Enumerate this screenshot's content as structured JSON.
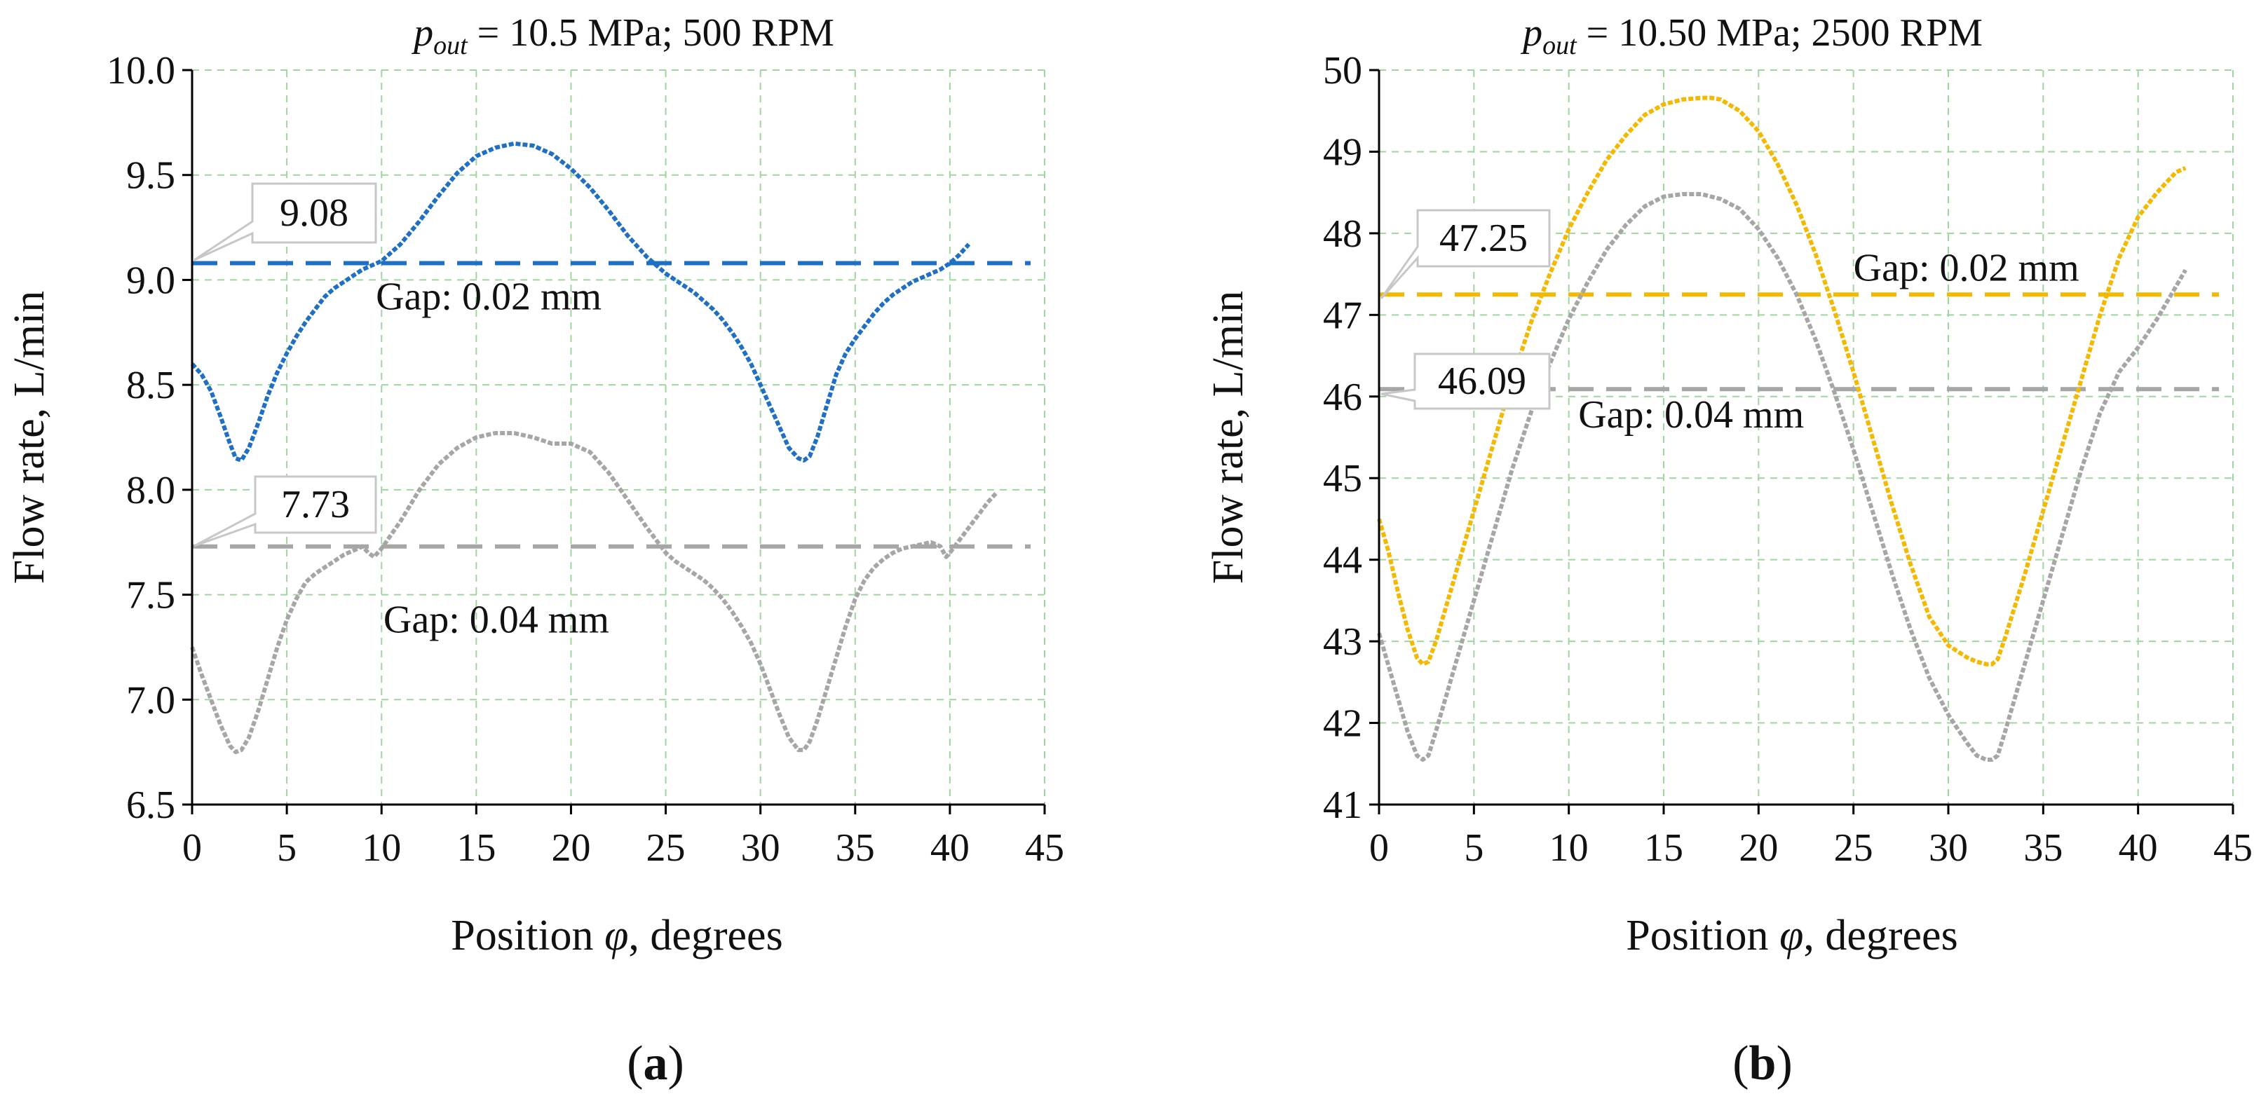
{
  "chart_data": [
    {
      "panel_label": "(a)",
      "type": "line",
      "title": {
        "symbol": "p",
        "subscript": "out",
        "rest": " = 10.5 MPa; 500 RPM"
      },
      "xlabel": {
        "before": "Position ",
        "symbol": "φ",
        "after": ", degrees"
      },
      "ylabel": "Flow rate, L/min",
      "xlim": [
        0,
        45
      ],
      "ylim": [
        6.5,
        10.0
      ],
      "x_ticks": [
        0,
        5,
        10,
        15,
        20,
        25,
        30,
        35,
        40,
        45
      ],
      "x_tick_labels": [
        "0",
        "5",
        "10",
        "15",
        "20",
        "25",
        "30",
        "35",
        "40",
        "45"
      ],
      "y_ticks": [
        6.5,
        7.0,
        7.5,
        8.0,
        8.5,
        9.0,
        9.5,
        10.0
      ],
      "y_tick_labels": [
        "6.5",
        "7.0",
        "7.5",
        "8.0",
        "8.5",
        "9.0",
        "9.5",
        "10.0"
      ],
      "grid": true,
      "series": [
        {
          "name": "Gap: 0.02 mm",
          "color": "#1f6fc5",
          "x": [
            0,
            0.5,
            1,
            1.5,
            2,
            2.3,
            2.6,
            3,
            3.5,
            4,
            4.5,
            5,
            5.5,
            6,
            6.5,
            7,
            7.5,
            8,
            8.5,
            9,
            9.5,
            10,
            11,
            12,
            13,
            14,
            15,
            16,
            17,
            18,
            19,
            20,
            21,
            22,
            23,
            24,
            25,
            25.5,
            26,
            26.5,
            27,
            27.5,
            28,
            28.5,
            29,
            29.5,
            30,
            30.5,
            31,
            31.5,
            32,
            32.3,
            32.6,
            33,
            33.5,
            34,
            34.5,
            35,
            35.5,
            36,
            36.5,
            37,
            37.5,
            38,
            38.5,
            39,
            39.5,
            40,
            40.5,
            41
          ],
          "y": [
            8.6,
            8.55,
            8.47,
            8.35,
            8.22,
            8.15,
            8.14,
            8.2,
            8.32,
            8.45,
            8.56,
            8.65,
            8.73,
            8.8,
            8.86,
            8.92,
            8.96,
            8.99,
            9.02,
            9.05,
            9.07,
            9.09,
            9.17,
            9.28,
            9.4,
            9.51,
            9.59,
            9.63,
            9.65,
            9.64,
            9.6,
            9.53,
            9.44,
            9.33,
            9.21,
            9.11,
            9.03,
            9.0,
            8.97,
            8.94,
            8.9,
            8.86,
            8.81,
            8.75,
            8.68,
            8.6,
            8.5,
            8.4,
            8.3,
            8.2,
            8.15,
            8.14,
            8.16,
            8.25,
            8.4,
            8.55,
            8.65,
            8.72,
            8.78,
            8.84,
            8.89,
            8.93,
            8.96,
            8.99,
            9.01,
            9.03,
            9.05,
            9.08,
            9.12,
            9.17
          ]
        },
        {
          "name": "Gap: 0.04 mm",
          "color": "#a6a6a6",
          "x": [
            0,
            0.5,
            1,
            1.5,
            2,
            2.3,
            2.6,
            3,
            3.5,
            4,
            4.5,
            5,
            5.5,
            6,
            6.5,
            7,
            7.5,
            8,
            8.5,
            9,
            9.3,
            9.6,
            10,
            11,
            12,
            13,
            14,
            15,
            16,
            17,
            18,
            19,
            20,
            21,
            22,
            23,
            24,
            25,
            25.5,
            26,
            26.5,
            27,
            27.5,
            28,
            28.5,
            29,
            29.5,
            30,
            30.5,
            31,
            31.5,
            32,
            32.3,
            32.6,
            33,
            33.5,
            34,
            34.5,
            35,
            35.5,
            36,
            36.5,
            37,
            37.5,
            38,
            38.5,
            39,
            39.5,
            39.8,
            40,
            40.5,
            41,
            41.5,
            42,
            42.5
          ],
          "y": [
            7.25,
            7.12,
            7.0,
            6.88,
            6.78,
            6.75,
            6.76,
            6.82,
            6.95,
            7.1,
            7.25,
            7.38,
            7.48,
            7.56,
            7.6,
            7.63,
            7.66,
            7.69,
            7.71,
            7.73,
            7.7,
            7.68,
            7.72,
            7.85,
            8.0,
            8.12,
            8.2,
            8.25,
            8.27,
            8.27,
            8.25,
            8.22,
            8.22,
            8.18,
            8.08,
            7.95,
            7.82,
            7.7,
            7.66,
            7.63,
            7.6,
            7.57,
            7.53,
            7.48,
            7.42,
            7.35,
            7.27,
            7.17,
            7.05,
            6.93,
            6.82,
            6.76,
            6.76,
            6.8,
            6.9,
            7.05,
            7.2,
            7.35,
            7.48,
            7.57,
            7.63,
            7.67,
            7.7,
            7.72,
            7.73,
            7.74,
            7.75,
            7.73,
            7.68,
            7.7,
            7.76,
            7.82,
            7.88,
            7.94,
            7.99
          ]
        }
      ],
      "reference_lines": [
        {
          "y": 9.08,
          "color": "#1f6fc5",
          "callout": "9.08",
          "label": "Gap: 0.02 mm",
          "label_at": [
            9.7,
            8.86
          ]
        },
        {
          "y": 7.73,
          "color": "#a6a6a6",
          "callout": "7.73",
          "label": "Gap: 0.04 mm",
          "label_at": [
            10.1,
            7.32
          ]
        }
      ]
    },
    {
      "panel_label": "(b)",
      "type": "line",
      "title": {
        "symbol": "p",
        "subscript": "out",
        "rest": " = 10.50 MPa; 2500 RPM"
      },
      "xlabel": {
        "before": "Position ",
        "symbol": "φ",
        "after": ", degrees"
      },
      "ylabel": "Flow rate, L/min",
      "xlim": [
        0,
        45
      ],
      "ylim": [
        41,
        50
      ],
      "x_ticks": [
        0,
        5,
        10,
        15,
        20,
        25,
        30,
        35,
        40,
        45
      ],
      "x_tick_labels": [
        "0",
        "5",
        "10",
        "15",
        "20",
        "25",
        "30",
        "35",
        "40",
        "45"
      ],
      "y_ticks": [
        41,
        42,
        43,
        44,
        45,
        46,
        47,
        48,
        49,
        50
      ],
      "y_tick_labels": [
        "41",
        "42",
        "43",
        "44",
        "45",
        "46",
        "47",
        "48",
        "49",
        "50"
      ],
      "grid": true,
      "series": [
        {
          "name": "Gap: 0.02 mm",
          "color": "#f5b800",
          "x": [
            0,
            0.5,
            1,
            1.5,
            2,
            2.3,
            2.6,
            3,
            4,
            5,
            6,
            7,
            8,
            9,
            10,
            11,
            12,
            13,
            14,
            15,
            16,
            17,
            17.5,
            18,
            19,
            20,
            21,
            22,
            23,
            24,
            25,
            26,
            27,
            28,
            29,
            30,
            31,
            31.5,
            32,
            32.3,
            32.6,
            33,
            34,
            35,
            36,
            37,
            38,
            39,
            40,
            41,
            42,
            42.5
          ],
          "y": [
            44.5,
            44.1,
            43.6,
            43.15,
            42.8,
            42.72,
            42.75,
            43.0,
            43.8,
            44.6,
            45.4,
            46.2,
            46.9,
            47.5,
            48.05,
            48.5,
            48.9,
            49.2,
            49.45,
            49.58,
            49.64,
            49.66,
            49.66,
            49.64,
            49.5,
            49.25,
            48.85,
            48.35,
            47.75,
            47.05,
            46.3,
            45.5,
            44.7,
            43.95,
            43.3,
            42.95,
            42.8,
            42.75,
            42.72,
            42.72,
            42.78,
            43.05,
            43.8,
            44.6,
            45.4,
            46.2,
            47.0,
            47.7,
            48.2,
            48.5,
            48.75,
            48.8
          ]
        },
        {
          "name": "Gap: 0.04 mm",
          "color": "#a6a6a6",
          "x": [
            0,
            0.5,
            1,
            1.5,
            2,
            2.3,
            2.6,
            3,
            4,
            5,
            6,
            7,
            8,
            9,
            10,
            11,
            12,
            13,
            14,
            15,
            16,
            17,
            17.5,
            18,
            19,
            20,
            21,
            22,
            23,
            24,
            25,
            26,
            27,
            28,
            29,
            30,
            31,
            31.5,
            32,
            32.3,
            32.6,
            33,
            34,
            35,
            36,
            37,
            38,
            39,
            40,
            41,
            42,
            42.5
          ],
          "y": [
            43.1,
            42.7,
            42.3,
            41.9,
            41.6,
            41.55,
            41.6,
            41.9,
            42.7,
            43.5,
            44.3,
            45.1,
            45.8,
            46.4,
            46.95,
            47.4,
            47.8,
            48.1,
            48.33,
            48.45,
            48.48,
            48.48,
            48.45,
            48.42,
            48.3,
            48.05,
            47.7,
            47.25,
            46.7,
            46.05,
            45.35,
            44.6,
            43.85,
            43.15,
            42.55,
            42.1,
            41.75,
            41.6,
            41.55,
            41.55,
            41.6,
            41.9,
            42.7,
            43.5,
            44.3,
            45.1,
            45.8,
            46.3,
            46.6,
            46.95,
            47.35,
            47.55
          ]
        }
      ],
      "reference_lines": [
        {
          "y": 47.25,
          "color": "#f5b800",
          "callout": "47.25",
          "label": "Gap: 0.02 mm",
          "label_at": [
            25.0,
            47.42
          ]
        },
        {
          "y": 46.09,
          "color": "#a6a6a6",
          "callout": "46.09",
          "label": "Gap: 0.04 mm",
          "label_at": [
            10.5,
            45.62
          ]
        }
      ]
    }
  ]
}
